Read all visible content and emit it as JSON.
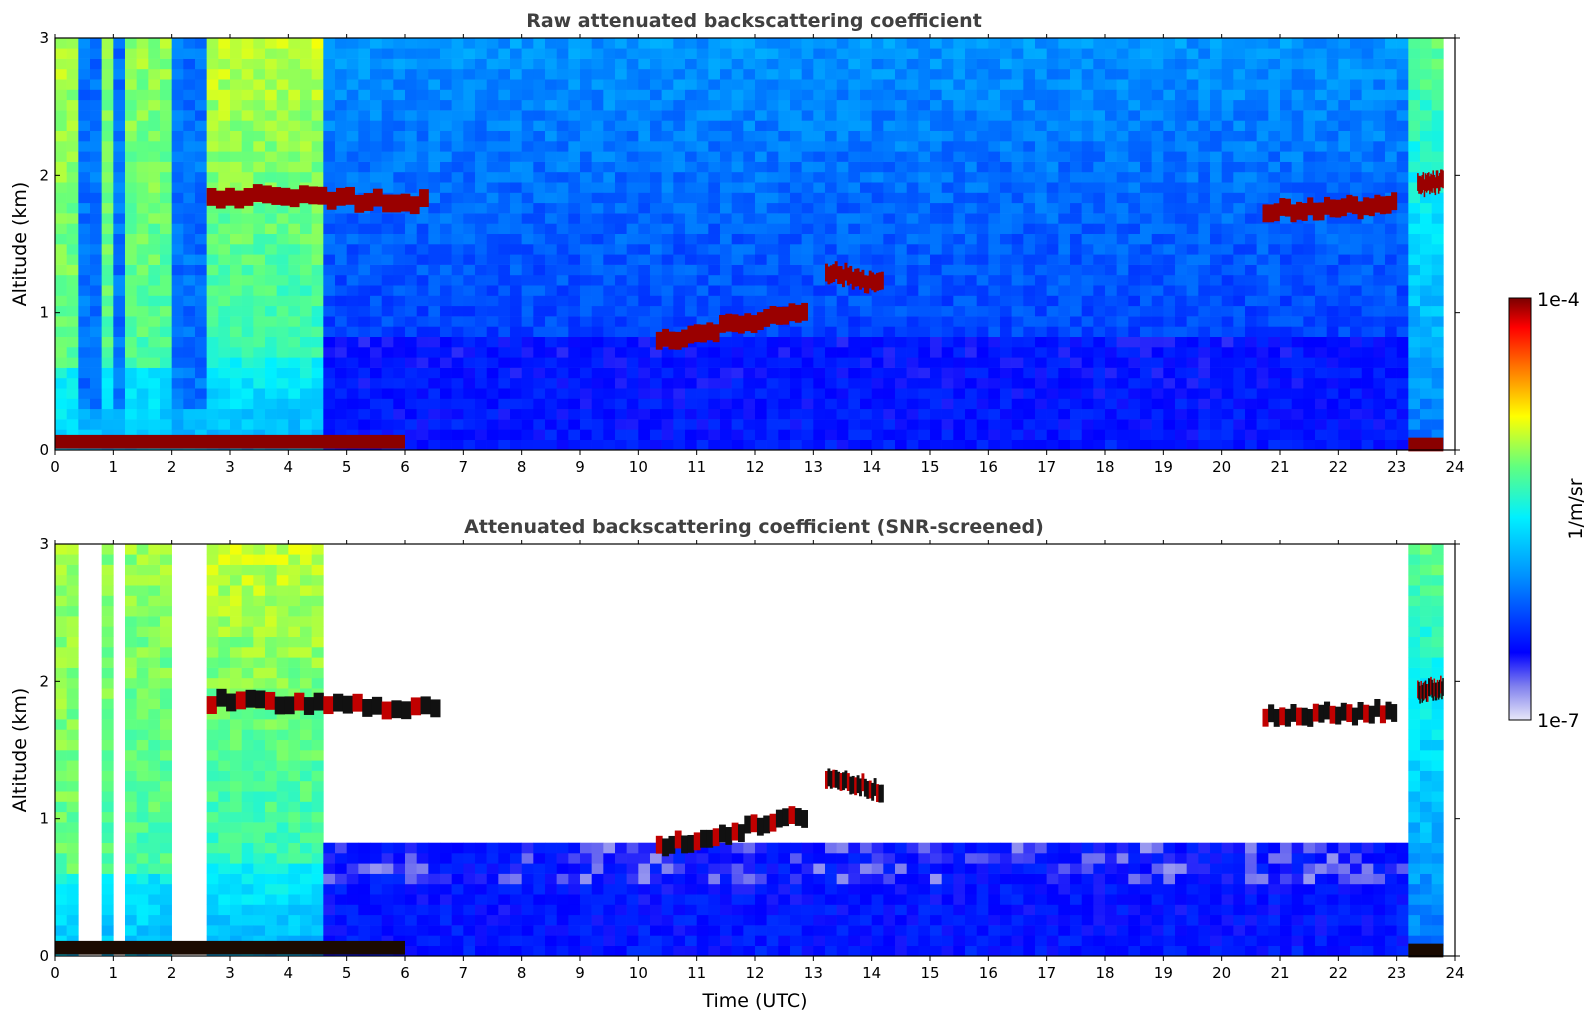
{
  "chart_data": [
    {
      "type": "heatmap",
      "title": "Raw attenuated backscattering coefficient",
      "xlabel": "",
      "ylabel": "Altitude (km)",
      "xlim": [
        0,
        24
      ],
      "ylim": [
        0,
        3
      ],
      "xticks": [
        "0",
        "1",
        "2",
        "3",
        "4",
        "5",
        "6",
        "7",
        "8",
        "9",
        "10",
        "11",
        "12",
        "13",
        "14",
        "15",
        "16",
        "17",
        "18",
        "19",
        "20",
        "21",
        "22",
        "23",
        "24"
      ],
      "yticks": [
        "0",
        "1",
        "2",
        "3"
      ],
      "screened": false,
      "cloud_layers": [
        {
          "t0": 2.6,
          "t1": 6.4,
          "alt_start": 1.85,
          "alt_end": 1.8
        },
        {
          "t0": 10.3,
          "t1": 12.9,
          "alt_start": 0.78,
          "alt_end": 1.02
        },
        {
          "t0": 13.2,
          "t1": 14.2,
          "alt_start": 1.3,
          "alt_end": 1.2
        },
        {
          "t0": 20.7,
          "t1": 23.0,
          "alt_start": 1.73,
          "alt_end": 1.78
        },
        {
          "t0": 23.35,
          "t1": 23.8,
          "alt_start": 1.92,
          "alt_end": 1.95
        }
      ],
      "surface_layers": [
        {
          "t0": 0.0,
          "t1": 6.0,
          "alt": 0.06
        },
        {
          "t0": 23.2,
          "t1": 23.8,
          "alt": 0.04
        }
      ]
    },
    {
      "type": "heatmap",
      "title": "Attenuated backscattering coefficient (SNR-screened)",
      "xlabel": "Time (UTC)",
      "ylabel": "Altitude (km)",
      "xlim": [
        0,
        24
      ],
      "ylim": [
        0,
        3
      ],
      "xticks": [
        "0",
        "1",
        "2",
        "3",
        "4",
        "5",
        "6",
        "7",
        "8",
        "9",
        "10",
        "11",
        "12",
        "13",
        "14",
        "15",
        "16",
        "17",
        "18",
        "19",
        "20",
        "21",
        "22",
        "23",
        "24"
      ],
      "yticks": [
        "0",
        "1",
        "2",
        "3"
      ],
      "screened": true,
      "cloud_layers": [
        {
          "t0": 2.6,
          "t1": 6.6,
          "alt_start": 1.85,
          "alt_end": 1.8
        },
        {
          "t0": 10.3,
          "t1": 12.9,
          "alt_start": 0.78,
          "alt_end": 1.02
        },
        {
          "t0": 13.2,
          "t1": 14.2,
          "alt_start": 1.3,
          "alt_end": 1.2
        },
        {
          "t0": 20.7,
          "t1": 23.0,
          "alt_start": 1.73,
          "alt_end": 1.78
        },
        {
          "t0": 23.35,
          "t1": 23.8,
          "alt_start": 1.92,
          "alt_end": 1.95
        }
      ],
      "surface_layers": [
        {
          "t0": 0.0,
          "t1": 6.0,
          "alt": 0.06
        },
        {
          "t0": 23.2,
          "t1": 23.8,
          "alt": 0.04
        }
      ]
    }
  ],
  "colorbar": {
    "label": "1/m/sr",
    "max_label": "1e-4",
    "min_label": "1e-7",
    "scale": "log",
    "colors": [
      "#e0e0f8",
      "#9090f0",
      "#0000ff",
      "#00a0ff",
      "#00ffe0",
      "#80ff60",
      "#ffff00",
      "#ff8000",
      "#ff0000",
      "#800000"
    ]
  }
}
